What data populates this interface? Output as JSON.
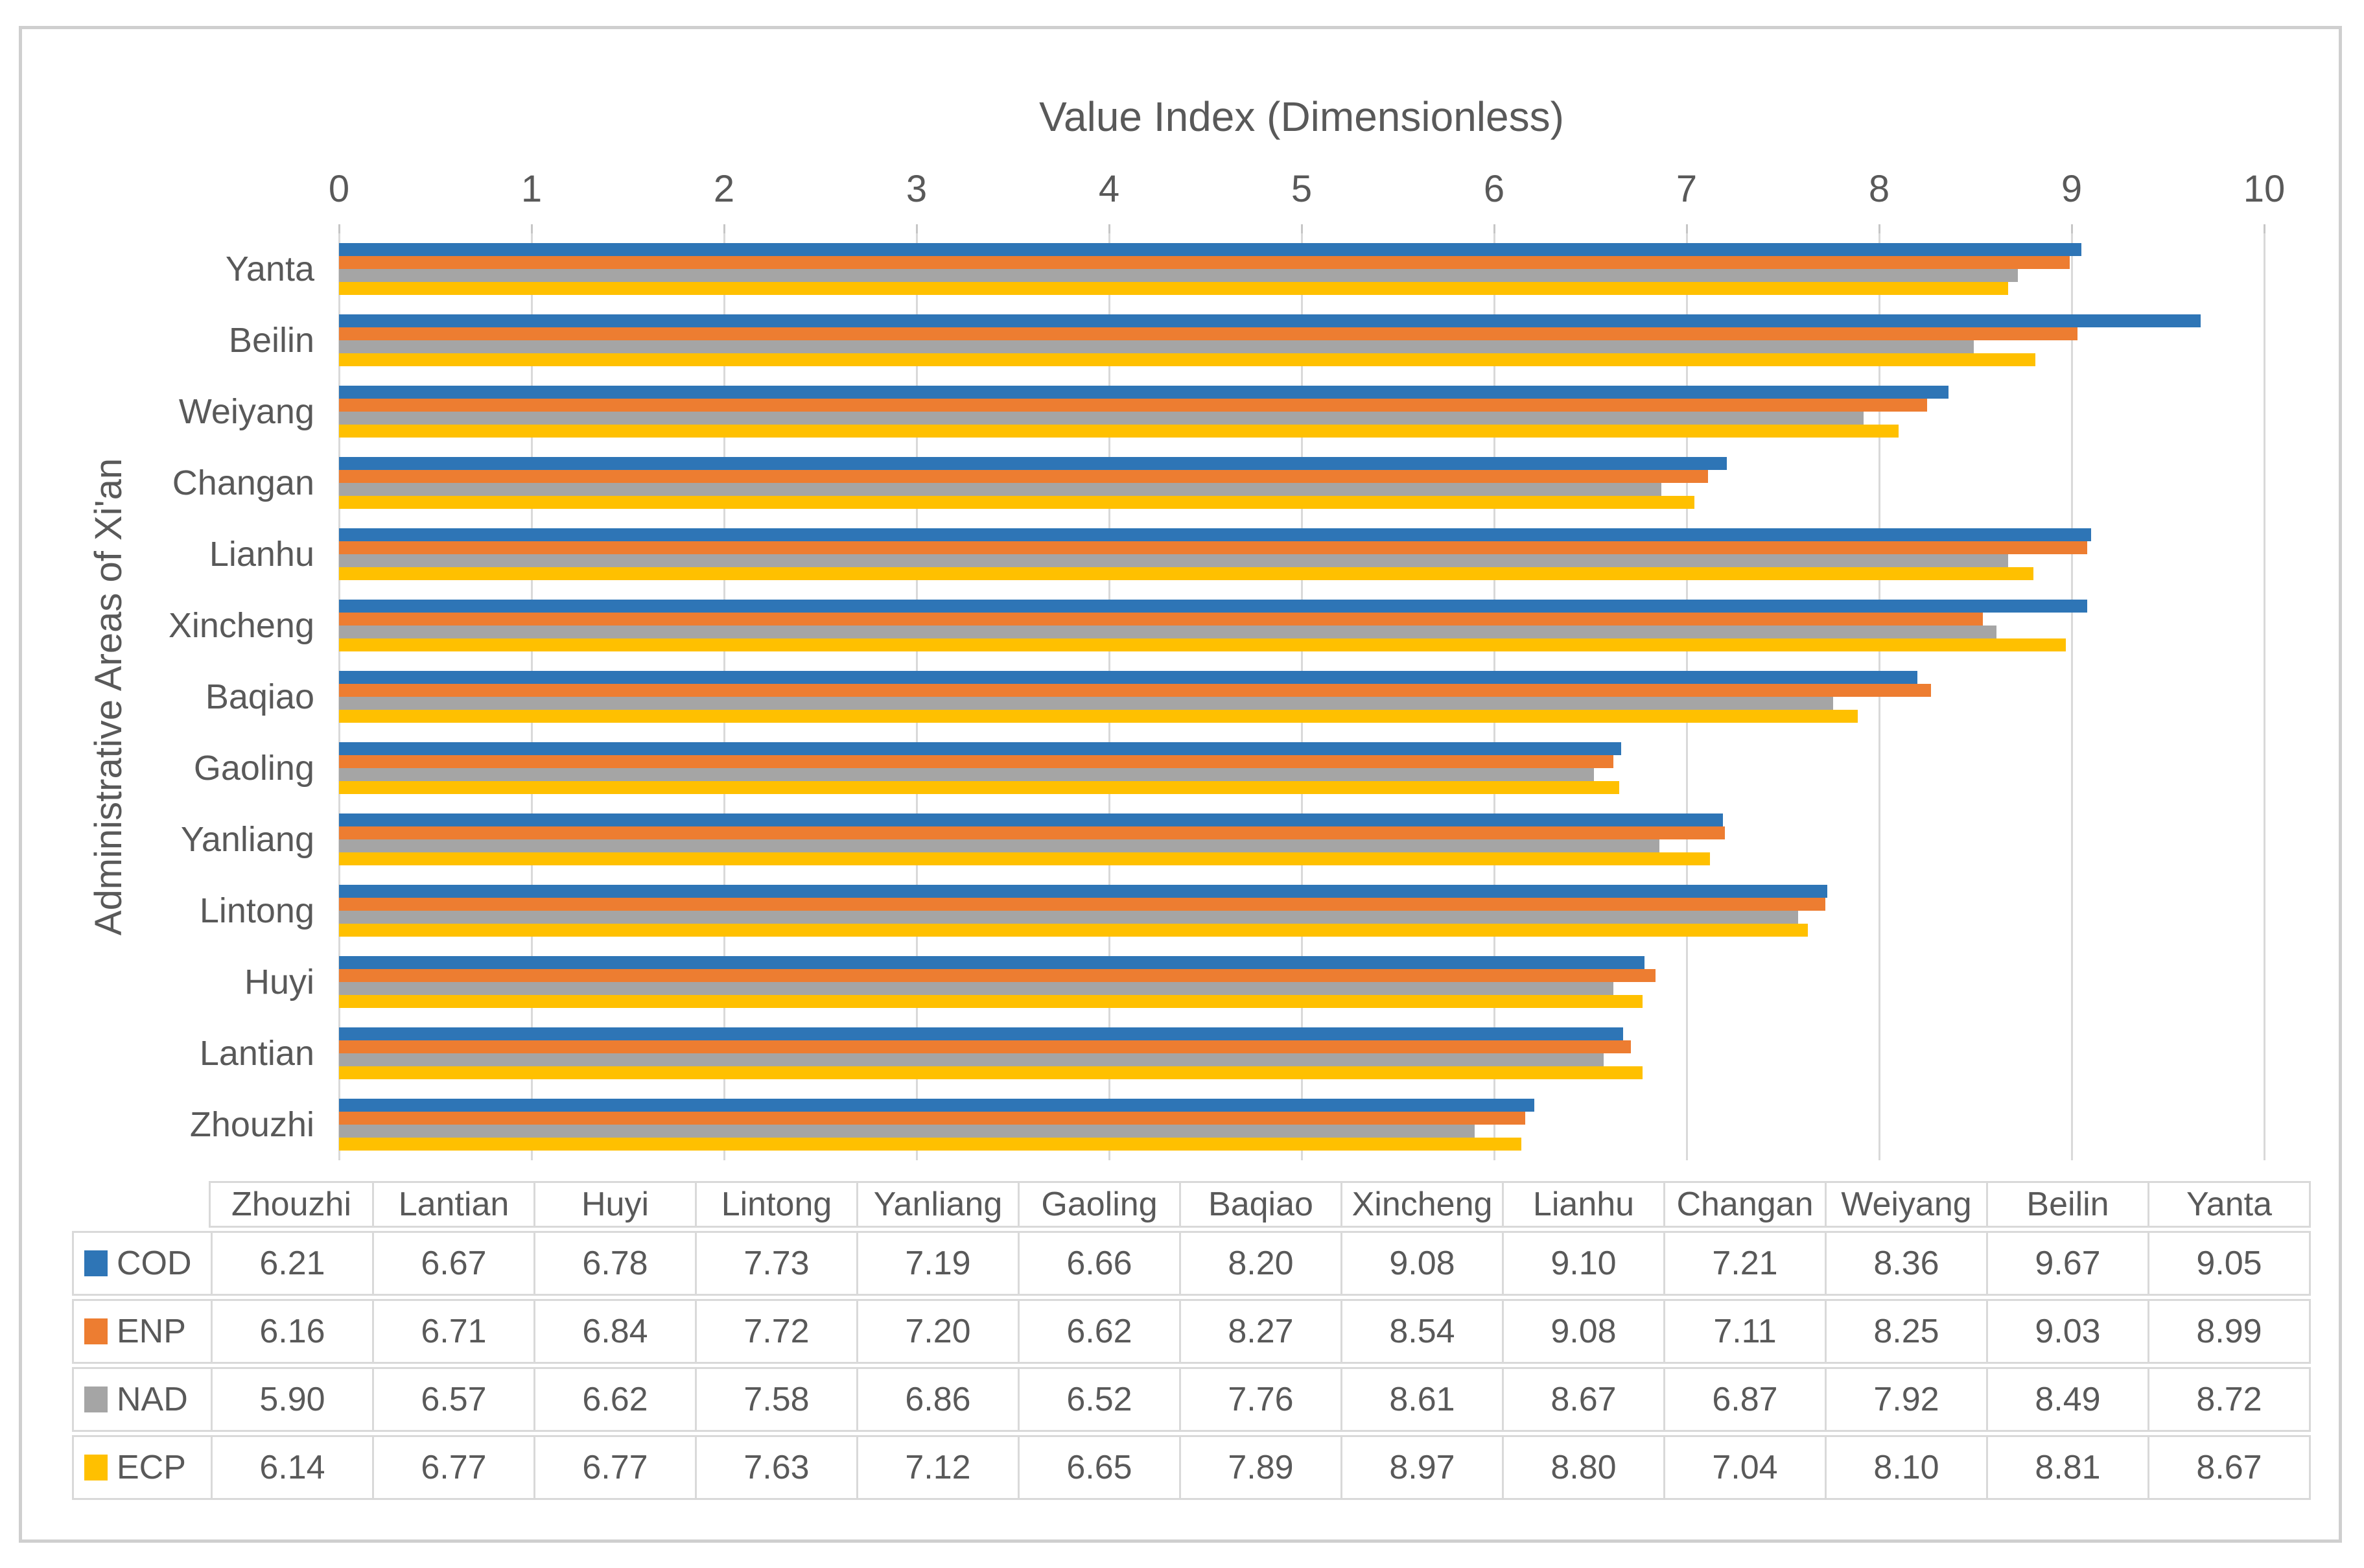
{
  "chart_data": {
    "type": "bar",
    "orientation": "horizontal",
    "title": "Value Index (Dimensionless)",
    "xlabel": "Value Index (Dimensionless)",
    "ylabel": "Administrative Areas of Xi'an",
    "xlim": [
      0,
      10
    ],
    "xticks": [
      0,
      1,
      2,
      3,
      4,
      5,
      6,
      7,
      8,
      9,
      10
    ],
    "grid": "vertical-gridlines-on",
    "legend_position": "data-table-left-keys",
    "categories": [
      "Zhouzhi",
      "Lantian",
      "Huyi",
      "Lintong",
      "Yanliang",
      "Gaoling",
      "Baqiao",
      "Xincheng",
      "Lianhu",
      "Changan",
      "Weiyang",
      "Beilin",
      "Yanta"
    ],
    "category_order_note": "chart displays categories bottom-to-top (Zhouzhi bottom, Yanta top); within each group bar order top-to-bottom is COD, ENP, NAD, ECP",
    "series": [
      {
        "name": "COD",
        "color": "#2E75B6",
        "values": [
          6.21,
          6.67,
          6.78,
          7.73,
          7.19,
          6.66,
          8.2,
          9.08,
          9.1,
          7.21,
          8.36,
          9.67,
          9.05
        ]
      },
      {
        "name": "ENP",
        "color": "#ED7D31",
        "values": [
          6.16,
          6.71,
          6.84,
          7.72,
          7.2,
          6.62,
          8.27,
          8.54,
          9.08,
          7.11,
          8.25,
          9.03,
          8.99
        ]
      },
      {
        "name": "NAD",
        "color": "#A5A5A5",
        "values": [
          5.9,
          6.57,
          6.62,
          7.58,
          6.86,
          6.52,
          7.76,
          8.61,
          8.67,
          6.87,
          7.92,
          8.49,
          8.72
        ]
      },
      {
        "name": "ECP",
        "color": "#FFC000",
        "values": [
          6.14,
          6.77,
          6.77,
          7.63,
          7.12,
          6.65,
          7.89,
          8.97,
          8.8,
          7.04,
          8.1,
          8.81,
          8.67
        ]
      }
    ]
  },
  "table": {
    "columns": [
      "Zhouzhi",
      "Lantian",
      "Huyi",
      "Lintong",
      "Yanliang",
      "Gaoling",
      "Baqiao",
      "Xincheng",
      "Lianhu",
      "Changan",
      "Weiyang",
      "Beilin",
      "Yanta"
    ],
    "rows": [
      {
        "name": "COD",
        "color": "#2E75B6",
        "values": [
          "6.21",
          "6.67",
          "6.78",
          "7.73",
          "7.19",
          "6.66",
          "8.20",
          "9.08",
          "9.10",
          "7.21",
          "8.36",
          "9.67",
          "9.05"
        ]
      },
      {
        "name": "ENP",
        "color": "#ED7D31",
        "values": [
          "6.16",
          "6.71",
          "6.84",
          "7.72",
          "7.20",
          "6.62",
          "8.27",
          "8.54",
          "9.08",
          "7.11",
          "8.25",
          "9.03",
          "8.99"
        ]
      },
      {
        "name": "NAD",
        "color": "#A5A5A5",
        "values": [
          "5.90",
          "6.57",
          "6.62",
          "7.58",
          "6.86",
          "6.52",
          "7.76",
          "8.61",
          "8.67",
          "6.87",
          "7.92",
          "8.49",
          "8.72"
        ]
      },
      {
        "name": "ECP",
        "color": "#FFC000",
        "values": [
          "6.14",
          "6.77",
          "6.77",
          "7.63",
          "7.12",
          "6.65",
          "7.89",
          "8.97",
          "8.80",
          "7.04",
          "8.10",
          "8.81",
          "8.67"
        ]
      }
    ]
  },
  "colors": {
    "text": "#595959",
    "gridline": "#D9D9D9",
    "frame_border": "#CFCFCF",
    "table_border": "#D9D9D9"
  }
}
